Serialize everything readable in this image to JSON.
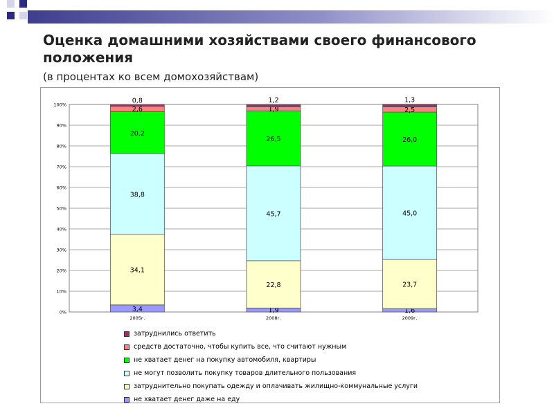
{
  "slide": {
    "title": "Оценка домашними хозяйствами своего финансового положения",
    "subtitle": "(в процентах ко всем домохозяйствам)"
  },
  "chart_data": {
    "type": "bar",
    "stacked": true,
    "categories": [
      "2005г.",
      "2008г.",
      "2009г."
    ],
    "ylim": [
      0,
      100
    ],
    "yticks": [
      "0%",
      "10%",
      "20%",
      "30%",
      "40%",
      "50%",
      "60%",
      "70%",
      "80%",
      "90%",
      "100%"
    ],
    "grid": true,
    "legend_position": "bottom",
    "series": [
      {
        "name": "не хватает денег даже на еду",
        "values": [
          3.4,
          1.9,
          1.6
        ],
        "labels": [
          "3,4",
          "1,9",
          "1,6"
        ],
        "color": "#9999ff"
      },
      {
        "name": "затруднительно покупать одежду и оплачивать жилищно-коммунальные услуги",
        "values": [
          34.1,
          22.8,
          23.7
        ],
        "labels": [
          "34,1",
          "22,8",
          "23,7"
        ],
        "color": "#ffffcc"
      },
      {
        "name": "не могут позволить покупку товаров длительного пользования",
        "values": [
          38.8,
          45.7,
          45.0
        ],
        "labels": [
          "38,8",
          "45,7",
          "45,0"
        ],
        "color": "#ccffff"
      },
      {
        "name": "не хватает денег на покупку автомобиля, квартиры",
        "values": [
          20.2,
          26.5,
          26.0
        ],
        "labels": [
          "20,2",
          "26,5",
          "26,0"
        ],
        "color": "#00ff00"
      },
      {
        "name": "средств достаточно, чтобы купить все, что считают нужным",
        "values": [
          2.6,
          1.9,
          2.5
        ],
        "labels": [
          "2,6",
          "1,9",
          "2,5"
        ],
        "color": "#ff8080"
      },
      {
        "name": "затруднились ответить",
        "values": [
          0.8,
          1.2,
          1.3
        ],
        "labels": [
          "0,8",
          "1,2",
          "1,3"
        ],
        "color": "#993366"
      }
    ]
  }
}
